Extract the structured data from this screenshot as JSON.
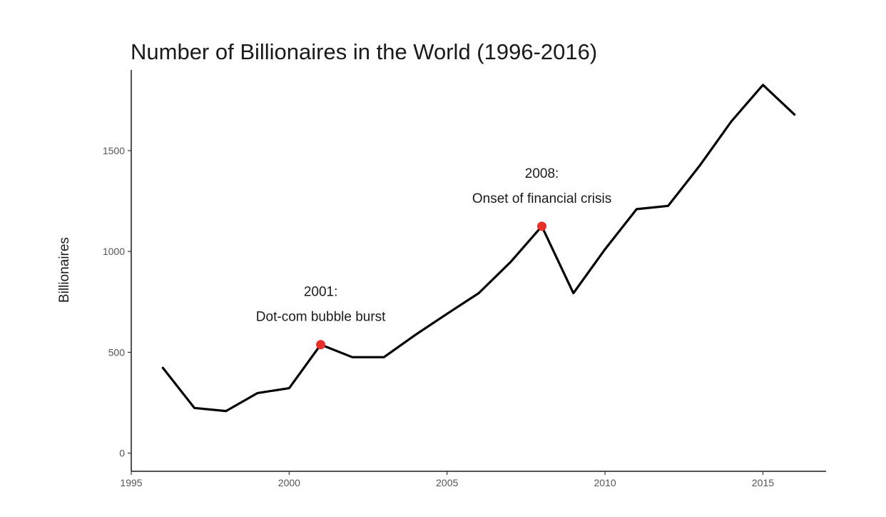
{
  "chart_data": {
    "type": "line",
    "title": "Number of Billionaires in the World (1996-2016)",
    "xlabel": "",
    "ylabel": "Billionaires",
    "xlim": [
      1995,
      2017
    ],
    "ylim": [
      -90,
      1900
    ],
    "x_ticks": [
      1995,
      2000,
      2005,
      2010,
      2015
    ],
    "y_ticks": [
      0,
      500,
      1000,
      1500
    ],
    "grid": false,
    "line_color": "#000000",
    "highlight_color": "#e8302a",
    "series": [
      {
        "name": "Billionaires",
        "x": [
          1996,
          1997,
          1998,
          1999,
          2000,
          2001,
          2002,
          2003,
          2004,
          2005,
          2006,
          2007,
          2008,
          2009,
          2010,
          2011,
          2012,
          2013,
          2014,
          2015,
          2016
        ],
        "values": [
          423,
          224,
          209,
          298,
          322,
          538,
          476,
          476,
          587,
          691,
          793,
          946,
          1125,
          793,
          1011,
          1210,
          1226,
          1426,
          1645,
          1826,
          1679
        ]
      }
    ],
    "highlights": [
      {
        "x": 2001,
        "y": 538,
        "label_line1": "2001:",
        "label_line2": "Dot-com bubble burst"
      },
      {
        "x": 2008,
        "y": 1125,
        "label_line1": "2008:",
        "label_line2": "Onset of financial crisis"
      }
    ]
  }
}
